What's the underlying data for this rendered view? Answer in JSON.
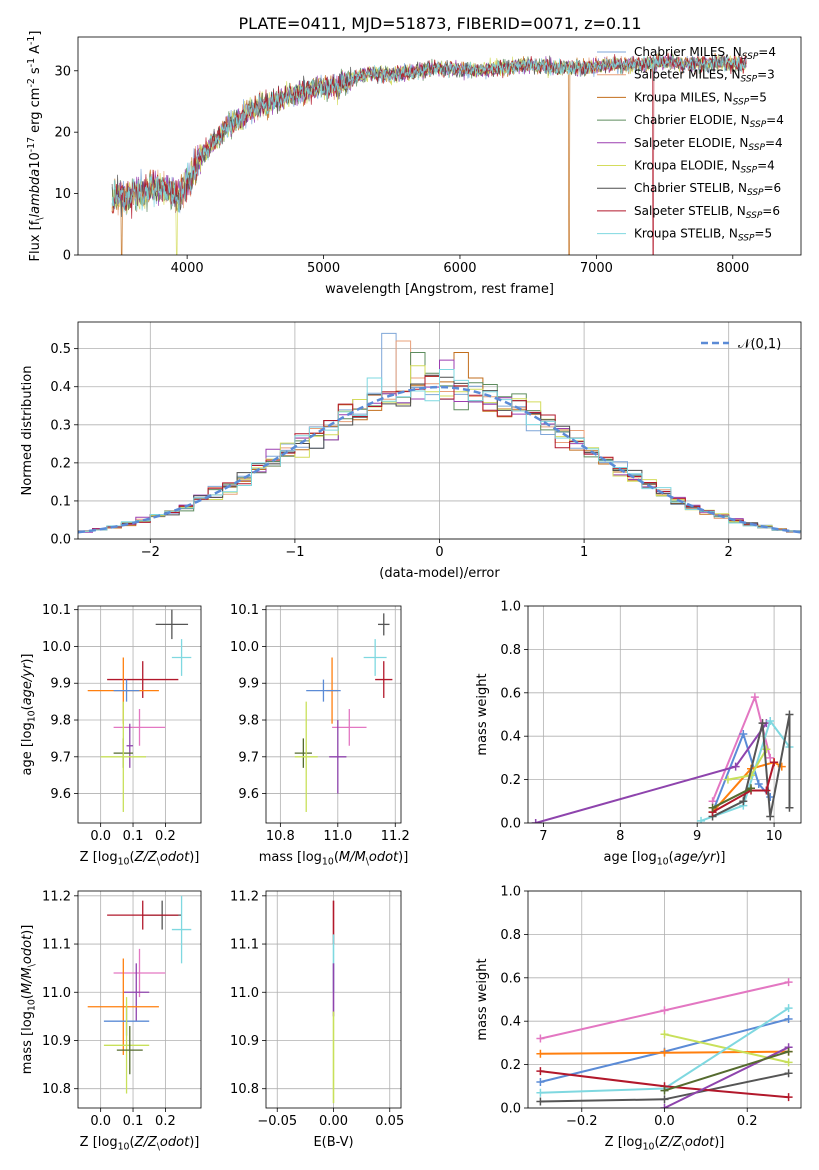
{
  "figure": {
    "title": "PLATE=0411, MJD=51873, FIBERID=0071, z=0.11"
  },
  "colors": {
    "Chabrier MILES": "#7fa6d8",
    "Salpeter MILES": "#e8a07a",
    "Kroupa MILES": "#c26e1c",
    "Chabrier ELODIE": "#5e8c5e",
    "Salpeter ELODIE": "#9b3fb0",
    "Kroupa ELODIE": "#d4dc5c",
    "Chabrier STELIB": "#4d4d4d",
    "Salpeter STELIB": "#b2182b",
    "Kroupa STELIB": "#7fd8e0",
    "pink": "#e377c2",
    "blue": "#5b8bd6",
    "orange": "#ff7f0e",
    "purple": "#8e44ad",
    "green": "#556b2f",
    "yellowgreen": "#c8e05a",
    "gray": "#555555",
    "red": "#b2182b",
    "cyan": "#7fd8e0"
  },
  "chart_data": [
    {
      "id": "spectrum",
      "type": "line",
      "xlabel": "wavelength [Angstrom, rest frame]",
      "ylabel": "Flux [f$_\\lambda$10$^{-17}$ erg cm$^{-2}$ s$^{-1}$ A$^{-1}$]",
      "xlim": [
        3200,
        8500
      ],
      "ylim": [
        0,
        35.5
      ],
      "xticks": [
        4000,
        5000,
        6000,
        7000,
        8000
      ],
      "yticks": [
        0,
        10,
        20,
        30
      ],
      "legend_position": "top-right",
      "legend": [
        {
          "text": "Chabrier MILES, N",
          "sub": "SSP",
          "suffix": "=4",
          "color": "Chabrier MILES"
        },
        {
          "text": "Salpeter MILES, N",
          "sub": "SSP",
          "suffix": "=3",
          "color": "Salpeter MILES"
        },
        {
          "text": "Kroupa MILES, N",
          "sub": "SSP",
          "suffix": "=5",
          "color": "Kroupa MILES"
        },
        {
          "text": "Chabrier ELODIE, N",
          "sub": "SSP",
          "suffix": "=4",
          "color": "Chabrier ELODIE"
        },
        {
          "text": "Salpeter ELODIE, N",
          "sub": "SSP",
          "suffix": "=4",
          "color": "Salpeter ELODIE"
        },
        {
          "text": "Kroupa ELODIE, N",
          "sub": "SSP",
          "suffix": "=4",
          "color": "Kroupa ELODIE"
        },
        {
          "text": "Chabrier STELIB, N",
          "sub": "SSP",
          "suffix": "=6",
          "color": "Chabrier STELIB"
        },
        {
          "text": "Salpeter STELIB, N",
          "sub": "SSP",
          "suffix": "=6",
          "color": "Salpeter STELIB"
        },
        {
          "text": "Kroupa STELIB, N",
          "sub": "SSP",
          "suffix": "=5",
          "color": "Kroupa STELIB"
        }
      ],
      "trend": {
        "x": [
          3450,
          3600,
          3800,
          3950,
          4100,
          4300,
          4500,
          4700,
          4900,
          5100,
          5300,
          5500,
          5700,
          5900,
          6100,
          6300,
          6500,
          6700,
          6900,
          7100,
          7300,
          7500,
          7700,
          7900,
          8100
        ],
        "y": [
          9,
          10,
          11,
          9.5,
          16,
          21,
          24,
          25.5,
          27,
          27.5,
          29.5,
          29.5,
          30,
          30.5,
          30,
          30.5,
          31,
          30.5,
          30.5,
          31,
          31,
          31.5,
          31,
          31.5,
          31
        ]
      },
      "dropouts": [
        {
          "x": 3520,
          "model": "Kroupa MILES"
        },
        {
          "x": 3925,
          "model": "Kroupa ELODIE"
        },
        {
          "x": 6800,
          "model": "Kroupa MILES"
        },
        {
          "x": 7415,
          "model": "Salpeter STELIB"
        }
      ]
    },
    {
      "id": "residuals",
      "type": "histogram",
      "xlabel": "(data-model)/error",
      "ylabel": "Normed distribution",
      "xlim": [
        -2.5,
        2.5
      ],
      "ylim": [
        0,
        0.57
      ],
      "xticks": [
        -2,
        -1,
        0,
        1,
        2
      ],
      "yticks": [
        0.0,
        0.1,
        0.2,
        0.3,
        0.4,
        0.5
      ],
      "bin_width": 0.1,
      "legend_position": "top-right",
      "legend": [
        {
          "text": "$\\mathcal{N}(0,1)$",
          "style": "dashed",
          "color": "blue"
        }
      ],
      "models": [
        "Chabrier MILES",
        "Salpeter MILES",
        "Kroupa MILES",
        "Chabrier ELODIE",
        "Salpeter ELODIE",
        "Kroupa ELODIE",
        "Chabrier STELIB",
        "Salpeter STELIB",
        "Kroupa STELIB"
      ],
      "peak_bins": [
        {
          "x": -0.35,
          "y": 0.54
        },
        {
          "x": -0.25,
          "y": 0.52
        },
        {
          "x": 0.15,
          "y": 0.49
        },
        {
          "x": -0.15,
          "y": 0.49
        },
        {
          "x": 0.05,
          "y": 0.47
        }
      ]
    },
    {
      "id": "age_vs_Z",
      "type": "scatter",
      "xlabel": "Z [log$_{10}$($Z/Z_\\odot$)]",
      "ylabel": "age  [log$_{10}$($age/yr$)]",
      "xlim": [
        -0.07,
        0.31
      ],
      "ylim": [
        9.52,
        10.11
      ],
      "xticks": [
        0.0,
        0.1,
        0.2
      ],
      "ytick_labels": [
        "9.6",
        "9.7",
        "9.8",
        "9.9",
        "10.0",
        "10.1"
      ],
      "yticks": [
        9.6,
        9.7,
        9.8,
        9.9,
        10.0,
        10.1
      ],
      "points": [
        {
          "x": 0.22,
          "y": 10.06,
          "xerr": 0.05,
          "yerr": 0.04,
          "color": "gray"
        },
        {
          "x": 0.25,
          "y": 9.97,
          "xerr": 0.03,
          "yerr": 0.05,
          "color": "cyan"
        },
        {
          "x": 0.13,
          "y": 9.91,
          "xerr": 0.11,
          "yerr": 0.05,
          "color": "red"
        },
        {
          "x": 0.07,
          "y": 9.88,
          "xerr": 0.11,
          "yerr": 0.09,
          "color": "orange"
        },
        {
          "x": 0.08,
          "y": 9.88,
          "xerr": 0.04,
          "yerr": 0.03,
          "color": "blue"
        },
        {
          "x": 0.12,
          "y": 9.78,
          "xerr": 0.08,
          "yerr": 0.05,
          "color": "pink"
        },
        {
          "x": 0.09,
          "y": 9.73,
          "xerr": 0.01,
          "yerr": 0.06,
          "color": "purple"
        },
        {
          "x": 0.07,
          "y": 9.71,
          "xerr": 0.03,
          "yerr": 0.04,
          "color": "green"
        },
        {
          "x": 0.07,
          "y": 9.7,
          "xerr": 0.07,
          "yerr": 0.15,
          "color": "yellowgreen"
        }
      ]
    },
    {
      "id": "age_vs_mass",
      "type": "scatter",
      "xlabel": "mass [log$_{10}$($M/M_\\odot$)]",
      "ylabel": "",
      "xlim": [
        10.75,
        11.22
      ],
      "ylim": [
        9.52,
        10.11
      ],
      "xticks": [
        10.8,
        11.0,
        11.2
      ],
      "yticks": [
        9.6,
        9.7,
        9.8,
        9.9,
        10.0,
        10.1
      ],
      "points": [
        {
          "x": 11.16,
          "y": 10.06,
          "xerr": 0.02,
          "yerr": 0.03,
          "color": "gray"
        },
        {
          "x": 11.13,
          "y": 9.97,
          "xerr": 0.04,
          "yerr": 0.05,
          "color": "cyan"
        },
        {
          "x": 11.16,
          "y": 9.91,
          "xerr": 0.03,
          "yerr": 0.05,
          "color": "red"
        },
        {
          "x": 10.98,
          "y": 9.88,
          "xerr": 0.02,
          "yerr": 0.09,
          "color": "orange"
        },
        {
          "x": 10.95,
          "y": 9.88,
          "xerr": 0.06,
          "yerr": 0.03,
          "color": "blue"
        },
        {
          "x": 11.04,
          "y": 9.78,
          "xerr": 0.06,
          "yerr": 0.05,
          "color": "pink"
        },
        {
          "x": 11.0,
          "y": 9.7,
          "xerr": 0.03,
          "yerr": 0.1,
          "color": "purple"
        },
        {
          "x": 10.88,
          "y": 9.71,
          "xerr": 0.03,
          "yerr": 0.04,
          "color": "green"
        },
        {
          "x": 10.89,
          "y": 9.7,
          "xerr": 0.04,
          "yerr": 0.15,
          "color": "yellowgreen"
        }
      ]
    },
    {
      "id": "weight_vs_age",
      "type": "line",
      "xlabel": "age  [log$_{10}$($age/yr$)]",
      "ylabel": "mass weight",
      "xlim": [
        6.8,
        10.35
      ],
      "ylim": [
        0,
        1
      ],
      "xticks": [
        7,
        8,
        9,
        10
      ],
      "yticks": [
        0.0,
        0.2,
        0.4,
        0.6,
        0.8,
        1.0
      ],
      "series": [
        {
          "color": "pink",
          "x": [
            9.2,
            9.75,
            9.95
          ],
          "y": [
            0.1,
            0.58,
            0.3
          ]
        },
        {
          "color": "blue",
          "x": [
            9.2,
            9.6,
            9.8,
            9.95
          ],
          "y": [
            0.05,
            0.41,
            0.18,
            0.12
          ]
        },
        {
          "color": "purple",
          "x": [
            6.9,
            9.5,
            9.9
          ],
          "y": [
            0.0,
            0.26,
            0.46
          ]
        },
        {
          "color": "orange",
          "x": [
            9.2,
            9.7,
            10.0,
            10.1
          ],
          "y": [
            0.05,
            0.25,
            0.28,
            0.26
          ]
        },
        {
          "color": "cyan",
          "x": [
            9.05,
            9.6,
            9.95,
            10.2
          ],
          "y": [
            0.01,
            0.08,
            0.47,
            0.35
          ]
        },
        {
          "color": "yellowgreen",
          "x": [
            9.4,
            9.7,
            9.9
          ],
          "y": [
            0.2,
            0.22,
            0.34
          ]
        },
        {
          "color": "gray",
          "x": [
            9.2,
            9.6,
            9.85,
            9.95,
            10.2,
            10.2
          ],
          "y": [
            0.03,
            0.1,
            0.46,
            0.03,
            0.5,
            0.07
          ]
        },
        {
          "color": "red",
          "x": [
            9.2,
            9.7,
            9.9,
            10.0
          ],
          "y": [
            0.05,
            0.15,
            0.15,
            0.28
          ]
        },
        {
          "color": "green",
          "x": [
            9.2,
            9.7
          ],
          "y": [
            0.07,
            0.16
          ]
        }
      ]
    },
    {
      "id": "mass_vs_Z",
      "type": "scatter",
      "xlabel": "Z [log$_{10}$($Z/Z_\\odot$)]",
      "ylabel": "mass [log$_{10}$($M/M_\\odot$)]",
      "xlim": [
        -0.07,
        0.31
      ],
      "ylim": [
        10.76,
        11.21
      ],
      "xticks": [
        0.0,
        0.1,
        0.2
      ],
      "yticks": [
        10.8,
        10.9,
        11.0,
        11.1,
        11.2
      ],
      "points": [
        {
          "x": 0.19,
          "y": 11.16,
          "xerr": 0.06,
          "yerr": 0.03,
          "color": "gray"
        },
        {
          "x": 0.13,
          "y": 11.16,
          "xerr": 0.11,
          "yerr": 0.03,
          "color": "red"
        },
        {
          "x": 0.25,
          "y": 11.13,
          "xerr": 0.03,
          "yerr": 0.07,
          "color": "cyan"
        },
        {
          "x": 0.12,
          "y": 11.04,
          "xerr": 0.08,
          "yerr": 0.05,
          "color": "pink"
        },
        {
          "x": 0.11,
          "y": 11.0,
          "xerr": 0.04,
          "yerr": 0.06,
          "color": "purple"
        },
        {
          "x": 0.07,
          "y": 10.97,
          "xerr": 0.11,
          "yerr": 0.1,
          "color": "orange"
        },
        {
          "x": 0.08,
          "y": 10.94,
          "xerr": 0.07,
          "yerr": 0.03,
          "color": "blue"
        },
        {
          "x": 0.08,
          "y": 10.89,
          "xerr": 0.07,
          "yerr": 0.1,
          "color": "yellowgreen"
        },
        {
          "x": 0.09,
          "y": 10.88,
          "xerr": 0.04,
          "yerr": 0.05,
          "color": "green"
        }
      ]
    },
    {
      "id": "mass_vs_ebv",
      "type": "scatter",
      "xlabel": "E(B-V)",
      "ylabel": "",
      "xlim": [
        -0.06,
        0.06
      ],
      "ylim": [
        10.76,
        11.21
      ],
      "xticks": [
        -0.05,
        0.0,
        0.05
      ],
      "xtick_labels": [
        "−0.05",
        "0.00",
        "0.05"
      ],
      "yticks": [
        10.8,
        10.9,
        11.0,
        11.1,
        11.2
      ],
      "segments": [
        {
          "x": 0.0,
          "y0": 11.1,
          "y1": 11.19,
          "color": "red"
        },
        {
          "x": 0.0,
          "y0": 11.0,
          "y1": 11.12,
          "color": "cyan"
        },
        {
          "x": 0.0,
          "y0": 10.95,
          "y1": 11.06,
          "color": "purple"
        },
        {
          "x": 0.0,
          "y0": 10.77,
          "y1": 10.96,
          "color": "yellowgreen"
        }
      ]
    },
    {
      "id": "weight_vs_Z",
      "type": "line",
      "xlabel": "Z [log$_{10}$($Z/Z_\\odot$)]",
      "ylabel": "mass weight",
      "xlim": [
        -0.33,
        0.33
      ],
      "ylim": [
        0,
        1
      ],
      "xticks": [
        -0.2,
        0.0,
        0.2
      ],
      "xtick_labels": [
        "−0.2",
        "0.0",
        "0.2"
      ],
      "yticks": [
        0.0,
        0.2,
        0.4,
        0.6,
        0.8,
        1.0
      ],
      "series": [
        {
          "color": "pink",
          "x": [
            -0.3,
            0.0,
            0.3
          ],
          "y": [
            0.32,
            0.45,
            0.58
          ]
        },
        {
          "color": "blue",
          "x": [
            -0.3,
            0.0,
            0.3
          ],
          "y": [
            0.12,
            0.26,
            0.41
          ]
        },
        {
          "color": "orange",
          "x": [
            -0.3,
            0.0,
            0.3
          ],
          "y": [
            0.25,
            0.255,
            0.26
          ]
        },
        {
          "color": "yellowgreen",
          "x": [
            0.0,
            0.3
          ],
          "y": [
            0.34,
            0.21
          ]
        },
        {
          "color": "cyan",
          "x": [
            -0.3,
            0.0,
            0.3
          ],
          "y": [
            0.07,
            0.09,
            0.46
          ]
        },
        {
          "color": "gray",
          "x": [
            -0.3,
            0.0,
            0.3
          ],
          "y": [
            0.03,
            0.04,
            0.16
          ]
        },
        {
          "color": "red",
          "x": [
            -0.3,
            0.0,
            0.3
          ],
          "y": [
            0.17,
            0.1,
            0.05
          ]
        },
        {
          "color": "purple",
          "x": [
            0.0,
            0.3
          ],
          "y": [
            0.0,
            0.28
          ]
        },
        {
          "color": "green",
          "x": [
            0.0,
            0.3
          ],
          "y": [
            0.08,
            0.26
          ]
        }
      ]
    }
  ]
}
